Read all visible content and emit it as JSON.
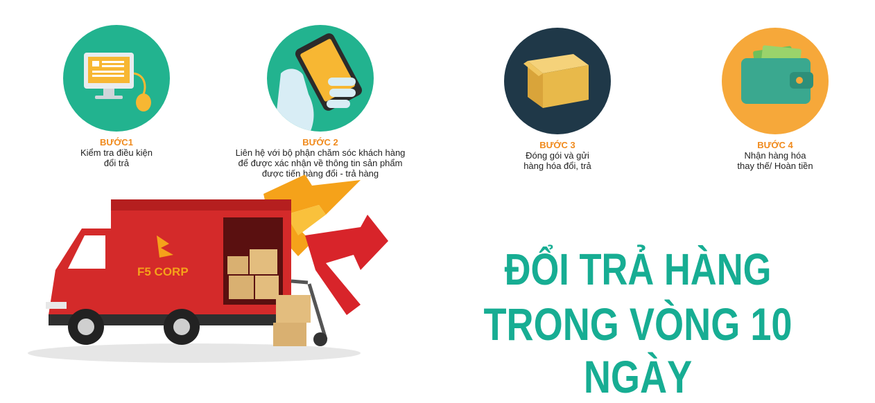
{
  "steps": [
    {
      "title": "BƯỚC1",
      "desc": "Kiểm tra điều kiện\nđổi trả",
      "icon": "monitor-mouse-icon",
      "color": "#22b38f"
    },
    {
      "title": "BƯỚC 2",
      "desc": "Liên hệ với bộ phận chăm sóc khách hàng\nđể được xác nhận về thông tin sản phẩm\nđược tiến hàng đổi - trả hàng",
      "icon": "phone-hand-icon",
      "color": "#22b38f"
    },
    {
      "title": "BƯỚC 3",
      "desc": "Đóng gói và gửi\nhàng hóa đổi, trả",
      "icon": "package-box-icon",
      "color": "#1f3848"
    },
    {
      "title": "BƯỚC 4",
      "desc": "Nhận hàng hóa\nthay thế/ Hoàn tiền",
      "icon": "wallet-icon",
      "color": "#f6a83a"
    }
  ],
  "headline": {
    "line1": "ĐỔI TRẢ HÀNG",
    "line2": "TRONG VÒNG 10 NGÀY",
    "color": "#17ad93"
  },
  "truck": {
    "brand": "F5 CORP",
    "body_color": "#d42a2a",
    "icon": "delivery-truck-icon"
  }
}
